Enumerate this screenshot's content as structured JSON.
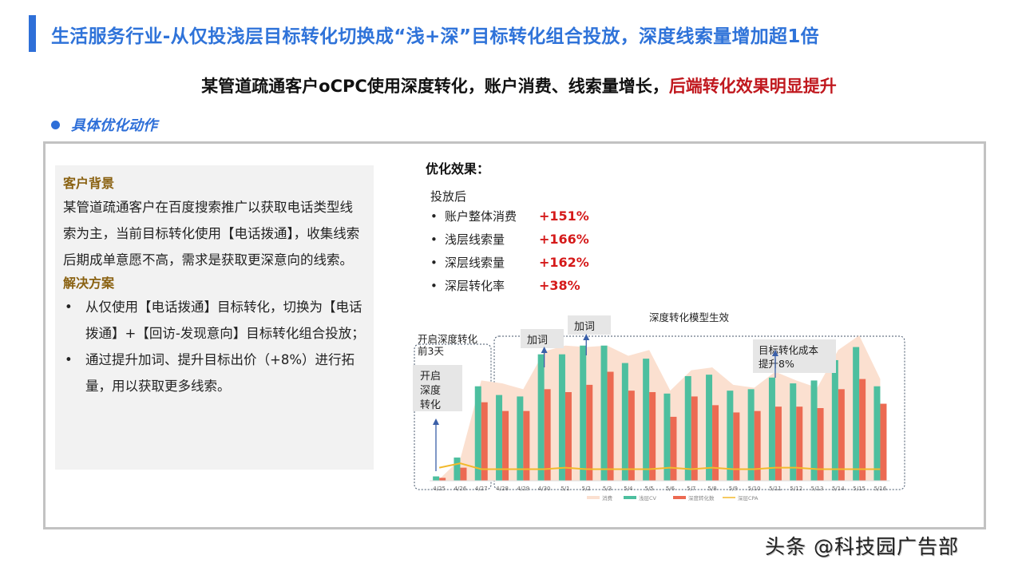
{
  "header": {
    "title": "生活服务行业-从仅投浅层目标转化切换成“浅+深”目标转化组合投放，深度线索量增加超1倍",
    "subtitle_black": "某管道疏通客户oCPC使用深度转化，账户消费、线索量增长，",
    "subtitle_red": "后端转化效果明显提升",
    "section_label": "具体优化动作"
  },
  "background_box": {
    "heading1": "客户背景",
    "para": "某管道疏通客户在百度搜索推广以获取电话类型线索为主，当前目标转化使用【电话拨通】，收集线索后期成单意愿不高，需求是获取更深意向的线索。",
    "heading2": "解决方案",
    "bullets": [
      "从仅使用【电话拨通】目标转化，切换为【电话拨通】+【回访-发现意向】目标转化组合投放；",
      "通过提升加词、提升目标出价（+8%）进行拓量，用以获取更多线索。"
    ]
  },
  "effect": {
    "title": "优化效果：",
    "sub": "投放后",
    "rows": [
      {
        "name": "账户整体消费",
        "value": "+151%"
      },
      {
        "name": "浅层线索量",
        "value": "+166%"
      },
      {
        "name": "深层线索量",
        "value": "+162%"
      },
      {
        "name": "深层转化率",
        "value": "+38%"
      }
    ]
  },
  "chart_data": {
    "type": "bar",
    "title": "深度转化模型生效",
    "xlabel": "",
    "ylabel": "",
    "ylim": [
      0,
      100
    ],
    "grid": false,
    "legend_position": "bottom",
    "categories": [
      "4/25",
      "4/26",
      "4/27",
      "4/28",
      "4/29",
      "4/30",
      "5/1",
      "5/2",
      "5/3",
      "5/4",
      "5/5",
      "5/6",
      "5/7",
      "5/8",
      "5/9",
      "5/10",
      "5/11",
      "5/12",
      "5/13",
      "5/14",
      "5/15",
      "5/16"
    ],
    "series": [
      {
        "name": "消费",
        "type": "area",
        "color": "#fbe0d0",
        "values": [
          1,
          15,
          69,
          67,
          63,
          89,
          93,
          92,
          93,
          86,
          90,
          62,
          76,
          78,
          66,
          64,
          75,
          69,
          64,
          90,
          100,
          70
        ]
      },
      {
        "name": "浅层CV",
        "type": "bar",
        "color": "#4dbf9f",
        "values": [
          3,
          16,
          65,
          59,
          58,
          87,
          87,
          93,
          93,
          81,
          84,
          60,
          72,
          73,
          62,
          63,
          71,
          67,
          69,
          83,
          92,
          65
        ]
      },
      {
        "name": "深度转化数",
        "type": "bar",
        "color": "#ec6a52",
        "values": [
          2,
          9,
          54,
          48,
          48,
          63,
          61,
          66,
          75,
          62,
          61,
          44,
          58,
          52,
          47,
          48,
          51,
          51,
          50,
          63,
          70,
          53
        ]
      },
      {
        "name": "深层CPA",
        "type": "line",
        "color": "#f2b92c",
        "values": [
          9,
          12,
          8,
          8,
          8,
          8,
          9,
          8,
          8,
          8,
          8,
          9,
          8,
          9,
          8,
          8,
          9,
          9,
          8,
          8,
          8,
          8
        ]
      }
    ],
    "annotations": [
      {
        "text": "开启深度转化前3天",
        "type": "group_label",
        "range": [
          "4/25",
          "4/27"
        ]
      },
      {
        "text": "开启深度转化",
        "type": "box",
        "at": "4/25"
      },
      {
        "text": "加词",
        "type": "box",
        "at": "4/30"
      },
      {
        "text": "加词",
        "type": "box",
        "at": "5/2"
      },
      {
        "text": "深度转化模型生效",
        "type": "group_label",
        "range": [
          "4/28",
          "5/16"
        ]
      },
      {
        "text": "目标转化成本提升8%",
        "type": "box",
        "at": "5/11"
      }
    ]
  },
  "watermark": "头条 @科技园广告部"
}
